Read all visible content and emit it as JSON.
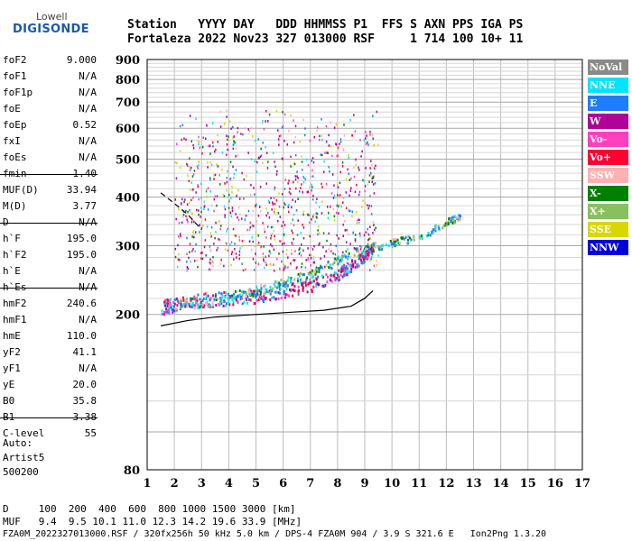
{
  "logo": {
    "line1": "Lowell",
    "line2": "DIGISONDE"
  },
  "header": {
    "line1": "Station   YYYY DAY   DDD HHMMSS P1  FFS S AXN PPS IGA PS",
    "line2": "Fortaleza 2022 Nov23 327 013000 RSF     1 714 100 10+ 11"
  },
  "params": [
    {
      "k": "foF2",
      "v": "9.000"
    },
    {
      "k": "foF1",
      "v": "N/A"
    },
    {
      "k": "foF1p",
      "v": "N/A"
    },
    {
      "k": "foE",
      "v": "N/A"
    },
    {
      "k": "foEp",
      "v": "0.52"
    },
    {
      "k": "fxI",
      "v": "N/A"
    },
    {
      "k": "foEs",
      "v": "N/A"
    },
    {
      "k": "fmin",
      "v": "1.40"
    },
    {
      "k": "MUF(D)",
      "v": "33.94"
    },
    {
      "k": "M(D)",
      "v": "3.77"
    },
    {
      "k": "D",
      "v": "N/A"
    },
    {
      "k": "h`F",
      "v": "195.0"
    },
    {
      "k": "h`F2",
      "v": "195.0"
    },
    {
      "k": "h`E",
      "v": "N/A"
    },
    {
      "k": "h`Es",
      "v": "N/A"
    },
    {
      "k": "hmF2",
      "v": "240.6"
    },
    {
      "k": "hmF1",
      "v": "N/A"
    },
    {
      "k": "hmE",
      "v": "110.0"
    },
    {
      "k": "yF2",
      "v": "41.1"
    },
    {
      "k": "yF1",
      "v": "N/A"
    },
    {
      "k": "yE",
      "v": "20.0"
    },
    {
      "k": "B0",
      "v": "35.8"
    },
    {
      "k": "B1",
      "v": "3.38"
    },
    {
      "k": "C-level",
      "v": "55"
    }
  ],
  "auto": {
    "l1": "Auto:",
    "l2": "Artist5",
    "l3": "500200"
  },
  "bottom": {
    "dist_row": "D     100  200  400  600  800 1000 1500 3000 [km]",
    "muf_row": "MUF   9.4  9.5 10.1 11.0 12.3 14.2 19.6 33.9 [MHz]",
    "footer": "FZA0M_2022327013000.RSF / 320fx256h 50 kHz 5.0 km / DPS-4 FZA0M 904 / 3.9 S 321.6 E   Ion2Png 1.3.20"
  },
  "legend": [
    {
      "label": "NoVal",
      "color": "#8a8a8a"
    },
    {
      "label": "NNE",
      "color": "#00e5ff"
    },
    {
      "label": "E",
      "color": "#1e7cff"
    },
    {
      "label": "W",
      "color": "#b0009a"
    },
    {
      "label": "Vo-",
      "color": "#ff3fbf"
    },
    {
      "label": "Vo+",
      "color": "#ff0033"
    },
    {
      "label": "SSW",
      "color": "#ffb0b0"
    },
    {
      "label": "X-",
      "color": "#008000"
    },
    {
      "label": "X+",
      "color": "#88c060"
    },
    {
      "label": "SSE",
      "color": "#d8d800"
    },
    {
      "label": "NNW",
      "color": "#0000dd"
    }
  ],
  "chart_data": {
    "type": "scatter",
    "title": "",
    "xlabel": "",
    "ylabel": "",
    "xlim": [
      1,
      17
    ],
    "ylim": [
      80,
      900
    ],
    "y_scale": "log",
    "x_ticks": [
      "1",
      "2",
      "3",
      "4",
      "5",
      "6",
      "7",
      "8",
      "9",
      "10",
      "11",
      "12",
      "13",
      "14",
      "15",
      "16",
      "17"
    ],
    "y_ticks": [
      "80",
      "200",
      "300",
      "400",
      "500",
      "600",
      "700",
      "800",
      "900"
    ],
    "grid": true,
    "legend_position": "right",
    "trace_o": {
      "x": [
        1.5,
        2.0,
        3.0,
        4.0,
        5.0,
        6.0,
        7.0,
        8.0,
        8.5,
        9.0,
        9.3
      ],
      "y": [
        200,
        205,
        210,
        212,
        215,
        222,
        230,
        245,
        260,
        275,
        290
      ]
    },
    "trace_x": {
      "x": [
        2.0,
        3.0,
        4.0,
        5.0,
        6.0,
        7.0,
        8.0,
        9.0,
        10.0,
        11.0,
        12.0,
        12.5
      ],
      "y": [
        205,
        210,
        215,
        225,
        235,
        250,
        270,
        290,
        300,
        310,
        340,
        350
      ]
    },
    "profile_curve": {
      "x": [
        1.5,
        2.5,
        3.5,
        4.5,
        5.5,
        6.5,
        7.5,
        8.5,
        9.0,
        9.3
      ],
      "y": [
        187,
        193,
        197,
        199,
        201,
        203,
        205,
        210,
        220,
        230
      ]
    },
    "dashed_curve": {
      "x": [
        1.5,
        2.0,
        2.5,
        3.0
      ],
      "y": [
        410,
        385,
        360,
        330
      ]
    },
    "spread_F": {
      "x_range": [
        2.0,
        9.5
      ],
      "y_range": [
        260,
        760
      ]
    }
  }
}
